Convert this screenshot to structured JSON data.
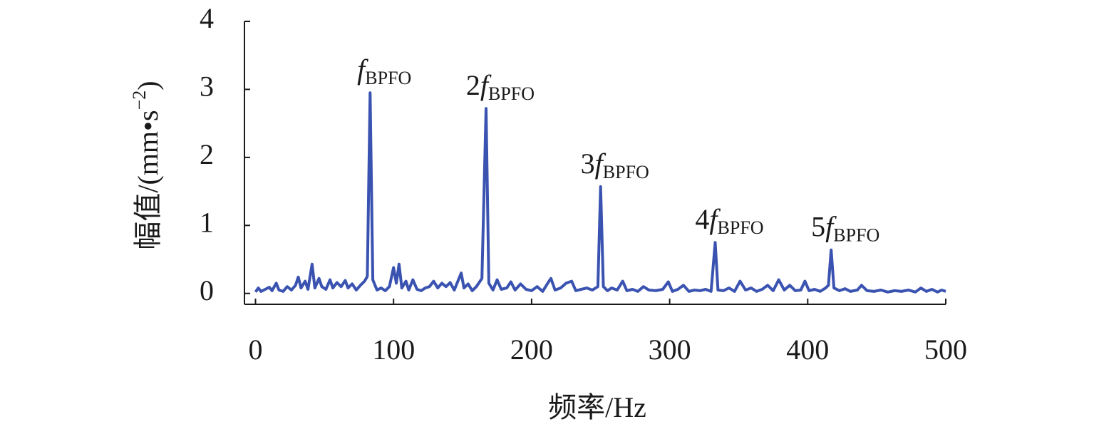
{
  "chart_data": {
    "type": "line",
    "xlabel": "频率/Hz",
    "ylabel": {
      "text": "幅值/(mm•s",
      "sup": "−2",
      "close": ")"
    },
    "xlim": [
      -8,
      500
    ],
    "ylim": [
      -0.16,
      4
    ],
    "xticks": [
      0,
      100,
      200,
      300,
      400,
      500
    ],
    "yticks": [
      0,
      1,
      2,
      3,
      4
    ],
    "annotations": [
      {
        "symbol": "f",
        "subscript": "BPFO"
      },
      {
        "multiple": "2",
        "symbol": "f",
        "subscript": "BPFO"
      },
      {
        "multiple": "3",
        "symbol": "f",
        "subscript": "BPFO"
      },
      {
        "multiple": "4",
        "symbol": "f",
        "subscript": "BPFO"
      },
      {
        "multiple": "5",
        "symbol": "f",
        "subscript": "BPFO"
      }
    ],
    "series": [
      {
        "color": "#3a53b0",
        "x": [
          0,
          2,
          4,
          7,
          10,
          12,
          15,
          17,
          20,
          23,
          26,
          29,
          31,
          33,
          36,
          38,
          41,
          43,
          46,
          48,
          51,
          54,
          56,
          59,
          62,
          65,
          67,
          70,
          73,
          76,
          79,
          81,
          83,
          85,
          88,
          91,
          94,
          97,
          100,
          102,
          104,
          106,
          109,
          111,
          114,
          117,
          120,
          123,
          126,
          129,
          132,
          135,
          138,
          141,
          144,
          149,
          151,
          154,
          157,
          160,
          164,
          167,
          169,
          172,
          175,
          178,
          182,
          185,
          188,
          192,
          196,
          200,
          204,
          208,
          212,
          214,
          217,
          221,
          225,
          229,
          232,
          236,
          240,
          244,
          248,
          250,
          252,
          255,
          258,
          262,
          266,
          269,
          273,
          277,
          281,
          285,
          290,
          295,
          299,
          302,
          306,
          310,
          314,
          318,
          322,
          326,
          330,
          333,
          335,
          339,
          343,
          347,
          351,
          355,
          359,
          363,
          367,
          371,
          375,
          379,
          383,
          387,
          391,
          395,
          398,
          401,
          405,
          409,
          413,
          415,
          417,
          419,
          423,
          427,
          431,
          436,
          439,
          443,
          448,
          453,
          458,
          463,
          468,
          473,
          478,
          482,
          486,
          490,
          494,
          497,
          500
        ],
        "values": [
          0.02,
          0.08,
          0.03,
          0.06,
          0.09,
          0.04,
          0.15,
          0.05,
          0.03,
          0.1,
          0.05,
          0.12,
          0.24,
          0.08,
          0.18,
          0.06,
          0.43,
          0.08,
          0.22,
          0.1,
          0.06,
          0.2,
          0.08,
          0.16,
          0.1,
          0.19,
          0.08,
          0.14,
          0.05,
          0.12,
          0.18,
          0.25,
          2.95,
          0.2,
          0.05,
          0.08,
          0.04,
          0.1,
          0.38,
          0.15,
          0.43,
          0.08,
          0.18,
          0.05,
          0.2,
          0.06,
          0.04,
          0.08,
          0.1,
          0.18,
          0.08,
          0.15,
          0.1,
          0.16,
          0.05,
          0.3,
          0.08,
          0.14,
          0.04,
          0.1,
          0.22,
          2.72,
          0.15,
          0.05,
          0.2,
          0.06,
          0.08,
          0.17,
          0.05,
          0.14,
          0.06,
          0.04,
          0.1,
          0.03,
          0.16,
          0.22,
          0.05,
          0.08,
          0.15,
          0.18,
          0.04,
          0.06,
          0.08,
          0.05,
          0.1,
          1.57,
          0.1,
          0.04,
          0.08,
          0.05,
          0.18,
          0.04,
          0.06,
          0.03,
          0.1,
          0.05,
          0.04,
          0.06,
          0.17,
          0.03,
          0.06,
          0.12,
          0.03,
          0.05,
          0.04,
          0.06,
          0.03,
          0.75,
          0.05,
          0.04,
          0.08,
          0.03,
          0.18,
          0.05,
          0.08,
          0.03,
          0.06,
          0.12,
          0.04,
          0.2,
          0.05,
          0.12,
          0.04,
          0.05,
          0.18,
          0.04,
          0.06,
          0.03,
          0.08,
          0.12,
          0.64,
          0.08,
          0.04,
          0.07,
          0.03,
          0.05,
          0.12,
          0.04,
          0.03,
          0.05,
          0.02,
          0.04,
          0.03,
          0.05,
          0.02,
          0.08,
          0.03,
          0.06,
          0.02,
          0.05,
          0.03
        ]
      }
    ]
  }
}
